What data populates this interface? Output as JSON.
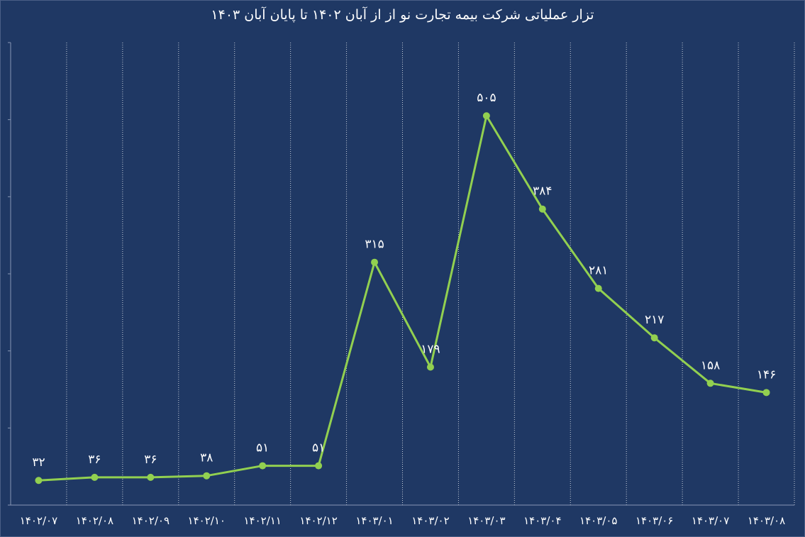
{
  "chart_data": {
    "type": "line",
    "title": "تزار عملیاتی شرکت بیمه تجارت نو از از آبان ۱۴۰۲ تا پایان آبان ۱۴۰۳",
    "categories": [
      "۱۴۰۲/۰۷",
      "۱۴۰۲/۰۸",
      "۱۴۰۲/۰۹",
      "۱۴۰۲/۱۰",
      "۱۴۰۲/۱۱",
      "۱۴۰۲/۱۲",
      "۱۴۰۳/۰۱",
      "۱۴۰۳/۰۲",
      "۱۴۰۳/۰۳",
      "۱۴۰۳/۰۴",
      "۱۴۰۳/۰۵",
      "۱۴۰۳/۰۶",
      "۱۴۰۳/۰۷",
      "۱۴۰۳/۰۸"
    ],
    "values": [
      32,
      36,
      36,
      38,
      51,
      51,
      315,
      179,
      505,
      384,
      281,
      217,
      158,
      146
    ],
    "value_labels": [
      "۳۲",
      "۳۶",
      "۳۶",
      "۳۸",
      "۵۱",
      "۵۱",
      "۳۱۵",
      "۱۷۹",
      "۵۰۵",
      "۳۸۴",
      "۲۸۱",
      "۲۱۷",
      "۱۵۸",
      "۱۴۶"
    ],
    "ylim": [
      0,
      600
    ],
    "xlabel": "",
    "ylabel": "",
    "grid": "vertical dotted",
    "colors": {
      "background": "#1f3864",
      "line": "#92d050",
      "grid": "#ffffff",
      "text": "#ffffff"
    }
  }
}
